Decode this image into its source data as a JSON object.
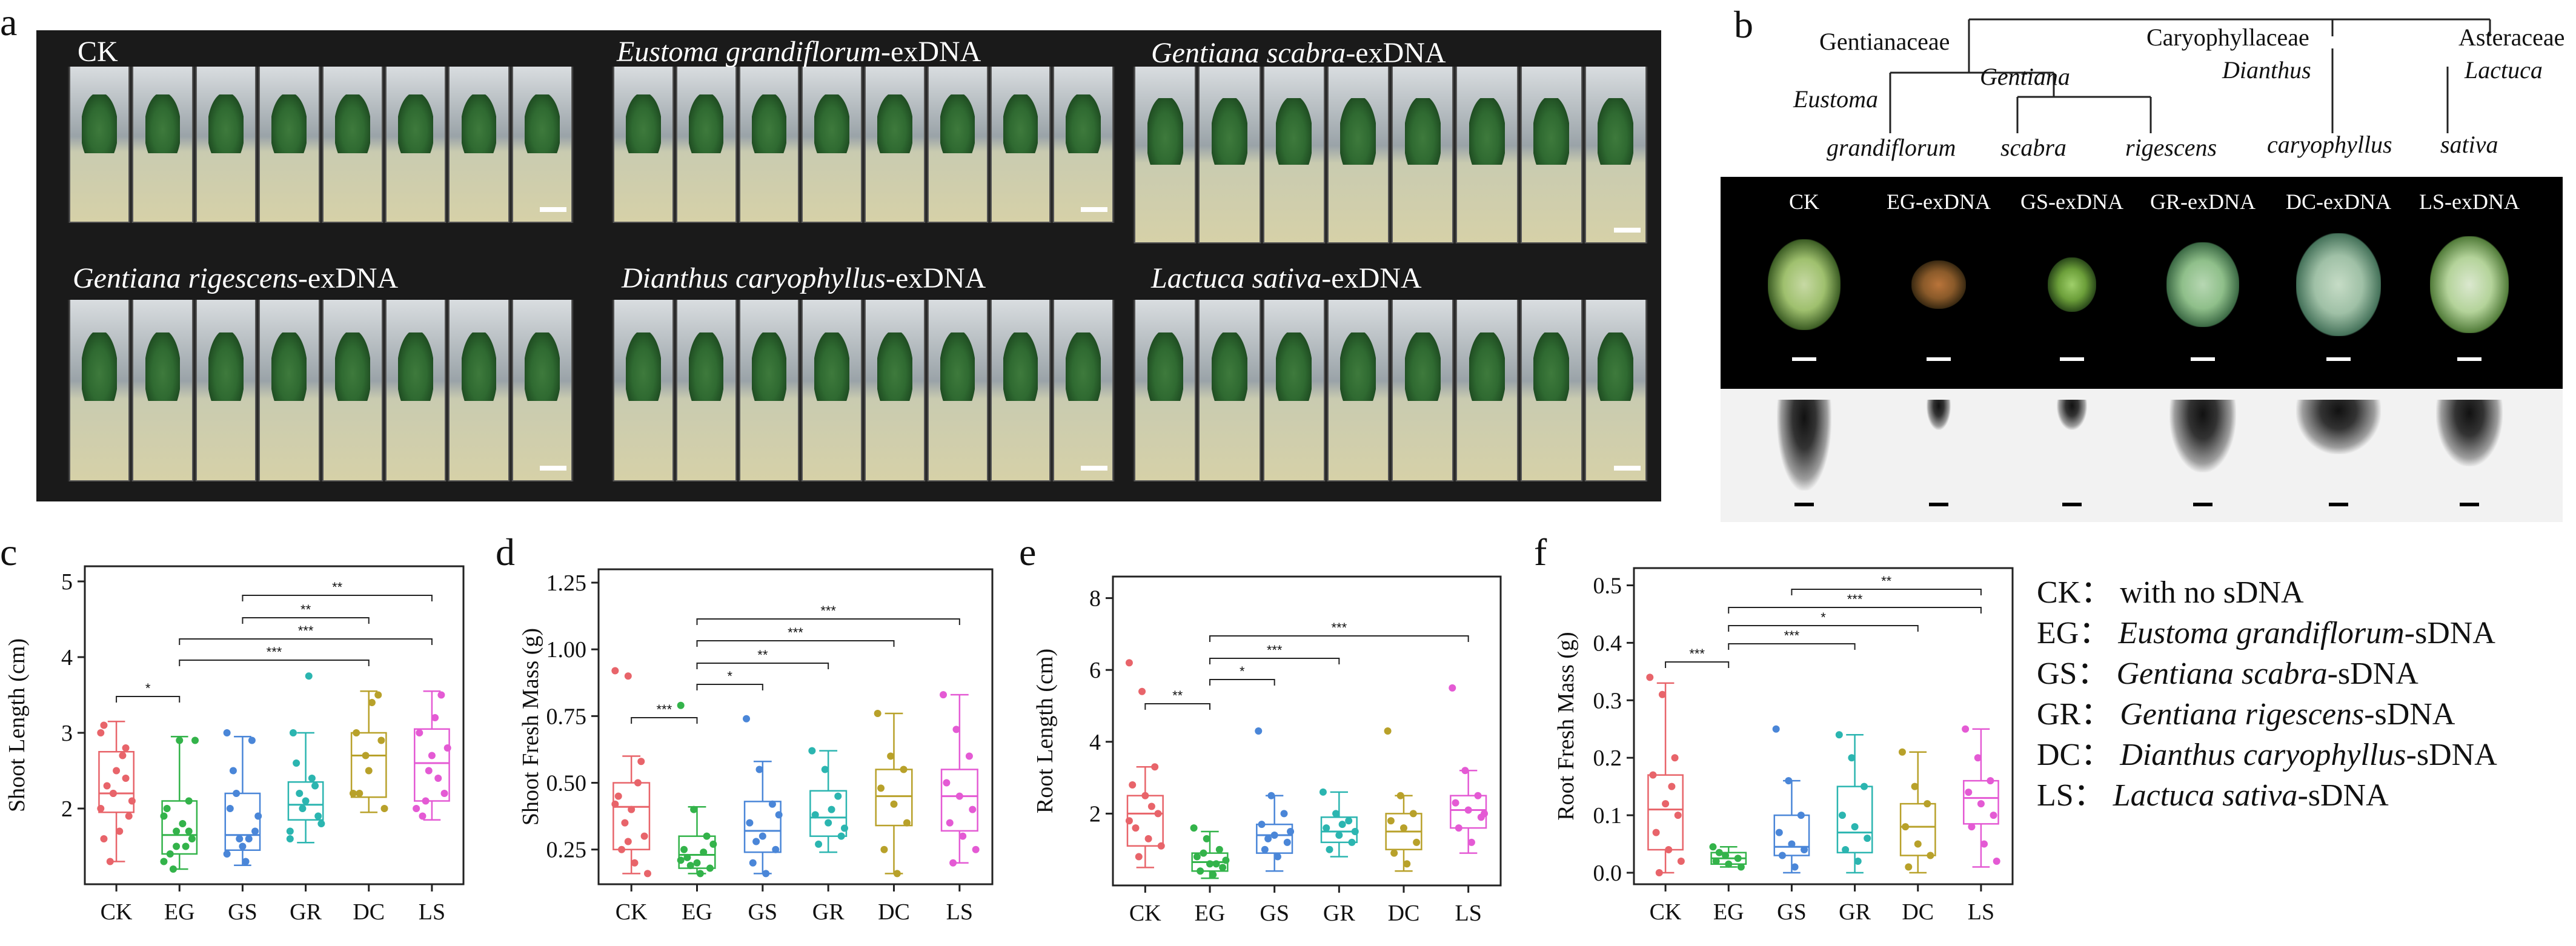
{
  "panel_labels": {
    "a": "a",
    "b": "b",
    "c": "c",
    "d": "d",
    "e": "e",
    "f": "f"
  },
  "panel_a": {
    "tiles": [
      {
        "caption_plain": "CK",
        "caption_italic": "",
        "caption_suffix": ""
      },
      {
        "caption_plain": "",
        "caption_italic": "Eustoma grandiflorum",
        "caption_suffix": "-exDNA"
      },
      {
        "caption_plain": "",
        "caption_italic": "Gentiana scabra",
        "caption_suffix": "-exDNA"
      },
      {
        "caption_plain": "",
        "caption_italic": "Gentiana rigescens",
        "caption_suffix": "-exDNA"
      },
      {
        "caption_plain": "",
        "caption_italic": "Dianthus caryophyllus",
        "caption_suffix": "-exDNA"
      },
      {
        "caption_plain": "",
        "caption_italic": "Lactuca sativa",
        "caption_suffix": "-exDNA"
      }
    ]
  },
  "panel_b": {
    "tree": {
      "families": [
        "Gentianaceae",
        "Caryophyllaceae",
        "Asteraceae"
      ],
      "genera": [
        "Eustoma",
        "Gentiana",
        "Dianthus",
        "Lactuca"
      ],
      "species": [
        "grandiflorum",
        "scabra",
        "rigescens",
        "caryophyllus",
        "sativa"
      ]
    },
    "columns": [
      "CK",
      "EG-exDNA",
      "GS-exDNA",
      "GR-exDNA",
      "DC-exDNA",
      "LS-exDNA"
    ]
  },
  "legend": [
    {
      "code": "CK",
      "sep": "：",
      "text_plain": "with no sDNA",
      "text_italic": "",
      "text_suffix": ""
    },
    {
      "code": "EG",
      "sep": "：",
      "text_plain": "",
      "text_italic": "Eustoma grandiflorum",
      "text_suffix": "-sDNA"
    },
    {
      "code": "GS",
      "sep": "：",
      "text_plain": "",
      "text_italic": "Gentiana scabra",
      "text_suffix": "-sDNA"
    },
    {
      "code": "GR",
      "sep": "：",
      "text_plain": "",
      "text_italic": "Gentiana rigescens",
      "text_suffix": "-sDNA"
    },
    {
      "code": "DC",
      "sep": "：",
      "text_plain": "",
      "text_italic": "Dianthus caryophyllus",
      "text_suffix": "-sDNA"
    },
    {
      "code": "LS",
      "sep": "：",
      "text_plain": "",
      "text_italic": "Lactuca sativa",
      "text_suffix": "-sDNA"
    }
  ],
  "group_colors": {
    "CK": "#e8646a",
    "EG": "#33b34a",
    "GS": "#4a86d8",
    "GR": "#2bb5b0",
    "DC": "#b8a12a",
    "LS": "#e45ad4"
  },
  "chart_data": [
    {
      "type": "box",
      "id": "c",
      "ylabel": "Shoot Length  (cm)",
      "categories": [
        "CK",
        "EG",
        "GS",
        "GR",
        "DC",
        "LS"
      ],
      "ylim": [
        1.0,
        5.2
      ],
      "yticks": [
        2,
        3,
        4,
        5
      ],
      "boxes": [
        {
          "q1": 1.95,
          "median": 2.2,
          "q3": 2.75,
          "whislo": 1.3,
          "whishi": 3.15
        },
        {
          "q1": 1.4,
          "median": 1.65,
          "q3": 2.1,
          "whislo": 1.2,
          "whishi": 2.95
        },
        {
          "q1": 1.45,
          "median": 1.65,
          "q3": 2.2,
          "whislo": 1.25,
          "whishi": 2.95
        },
        {
          "q1": 1.85,
          "median": 2.05,
          "q3": 2.35,
          "whislo": 1.55,
          "whishi": 3.0
        },
        {
          "q1": 2.15,
          "median": 2.7,
          "q3": 3.0,
          "whislo": 1.95,
          "whishi": 3.55
        },
        {
          "q1": 2.1,
          "median": 2.6,
          "q3": 3.05,
          "whislo": 1.85,
          "whishi": 3.55
        }
      ],
      "points": [
        [
          2.0,
          2.2,
          2.8,
          3.1,
          2.5,
          1.9,
          2.3,
          1.7,
          2.1,
          1.3,
          2.7,
          3.0,
          2.2,
          2.4,
          1.6
        ],
        [
          1.3,
          1.5,
          1.7,
          2.0,
          2.9,
          1.6,
          1.4,
          1.8,
          2.9,
          1.2,
          1.5,
          1.9,
          1.7,
          2.1
        ],
        [
          1.4,
          1.6,
          2.9,
          2.0,
          1.5,
          1.7,
          2.5,
          1.3,
          1.9,
          2.2,
          1.6,
          3.0
        ],
        [
          1.7,
          2.0,
          2.3,
          3.0,
          2.1,
          1.9,
          2.6,
          3.75,
          1.8,
          2.2,
          2.4,
          1.6
        ],
        [
          2.2,
          2.7,
          3.5,
          3.0,
          2.5,
          2.9,
          2.2,
          3.4,
          2.0
        ],
        [
          2.0,
          2.5,
          3.5,
          3.0,
          2.7,
          2.2,
          1.9,
          3.2,
          2.8,
          2.1,
          2.4
        ]
      ],
      "significance": [
        {
          "from": "CK",
          "to": "EG",
          "label": "*"
        },
        {
          "from": "EG",
          "to": "DC",
          "label": "***"
        },
        {
          "from": "EG",
          "to": "LS",
          "label": "***"
        },
        {
          "from": "GS",
          "to": "DC",
          "label": "**"
        },
        {
          "from": "GS",
          "to": "LS",
          "label": "**"
        }
      ]
    },
    {
      "type": "box",
      "id": "d",
      "ylabel": "Shoot Fresh Mass  (g)",
      "categories": [
        "CK",
        "EG",
        "GS",
        "GR",
        "DC",
        "LS"
      ],
      "ylim": [
        0.12,
        1.3
      ],
      "yticks": [
        0.25,
        0.5,
        0.75,
        1.0,
        1.25
      ],
      "ytick_labels": [
        "0.25",
        "0.50",
        "0.75",
        "1.00",
        "1.25"
      ],
      "boxes": [
        {
          "q1": 0.25,
          "median": 0.41,
          "q3": 0.5,
          "whislo": 0.16,
          "whishi": 0.6
        },
        {
          "q1": 0.18,
          "median": 0.23,
          "q3": 0.3,
          "whislo": 0.16,
          "whishi": 0.41
        },
        {
          "q1": 0.24,
          "median": 0.32,
          "q3": 0.43,
          "whislo": 0.16,
          "whishi": 0.58
        },
        {
          "q1": 0.3,
          "median": 0.37,
          "q3": 0.47,
          "whislo": 0.24,
          "whishi": 0.62
        },
        {
          "q1": 0.34,
          "median": 0.45,
          "q3": 0.55,
          "whislo": 0.16,
          "whishi": 0.76
        },
        {
          "q1": 0.32,
          "median": 0.45,
          "q3": 0.55,
          "whislo": 0.2,
          "whishi": 0.83
        }
      ],
      "points": [
        [
          0.92,
          0.9,
          0.58,
          0.45,
          0.4,
          0.3,
          0.25,
          0.2,
          0.16,
          0.35,
          0.5,
          0.42,
          0.28
        ],
        [
          0.79,
          0.4,
          0.3,
          0.25,
          0.2,
          0.18,
          0.22,
          0.16,
          0.27,
          0.19,
          0.24,
          0.21
        ],
        [
          0.74,
          0.55,
          0.42,
          0.35,
          0.3,
          0.25,
          0.2,
          0.16,
          0.38,
          0.28
        ],
        [
          0.62,
          0.55,
          0.45,
          0.38,
          0.35,
          0.3,
          0.27,
          0.4,
          0.33
        ],
        [
          0.76,
          0.6,
          0.55,
          0.48,
          0.42,
          0.35,
          0.25,
          0.16
        ],
        [
          0.83,
          0.7,
          0.6,
          0.5,
          0.45,
          0.4,
          0.35,
          0.3,
          0.25,
          0.2
        ]
      ],
      "significance": [
        {
          "from": "CK",
          "to": "EG",
          "label": "***"
        },
        {
          "from": "EG",
          "to": "GS",
          "label": "*"
        },
        {
          "from": "EG",
          "to": "GR",
          "label": "**"
        },
        {
          "from": "EG",
          "to": "DC",
          "label": "***"
        },
        {
          "from": "EG",
          "to": "LS",
          "label": "***"
        }
      ]
    },
    {
      "type": "box",
      "id": "e",
      "ylabel": "Root Length  (cm)",
      "categories": [
        "CK",
        "EG",
        "GS",
        "GR",
        "DC",
        "LS"
      ],
      "ylim": [
        0,
        8.6
      ],
      "yticks": [
        2,
        4,
        6,
        8
      ],
      "boxes": [
        {
          "q1": 1.1,
          "median": 2.0,
          "q3": 2.5,
          "whislo": 0.5,
          "whishi": 3.3
        },
        {
          "q1": 0.4,
          "median": 0.65,
          "q3": 0.9,
          "whislo": 0.2,
          "whishi": 1.5
        },
        {
          "q1": 0.9,
          "median": 1.4,
          "q3": 1.7,
          "whislo": 0.4,
          "whishi": 2.5
        },
        {
          "q1": 1.2,
          "median": 1.5,
          "q3": 1.9,
          "whislo": 0.8,
          "whishi": 2.6
        },
        {
          "q1": 1.0,
          "median": 1.5,
          "q3": 2.0,
          "whislo": 0.4,
          "whishi": 2.5
        },
        {
          "q1": 1.6,
          "median": 2.1,
          "q3": 2.5,
          "whislo": 0.9,
          "whishi": 3.2
        }
      ],
      "points": [
        [
          6.2,
          5.4,
          3.3,
          2.8,
          2.5,
          2.0,
          1.6,
          1.3,
          1.1,
          0.8,
          2.2,
          1.8
        ],
        [
          1.6,
          1.3,
          1.0,
          0.8,
          0.6,
          0.5,
          0.4,
          0.3,
          0.7,
          0.9,
          0.6
        ],
        [
          4.3,
          2.5,
          2.0,
          1.7,
          1.4,
          1.2,
          1.0,
          0.8,
          1.5,
          1.3
        ],
        [
          2.6,
          2.0,
          1.8,
          1.6,
          1.4,
          1.2,
          1.0,
          1.7,
          1.5
        ],
        [
          4.3,
          2.5,
          2.0,
          1.8,
          1.6,
          1.2,
          0.9,
          0.6
        ],
        [
          5.5,
          3.2,
          2.5,
          2.3,
          2.1,
          1.9,
          1.6,
          1.2,
          2.0
        ]
      ],
      "significance": [
        {
          "from": "CK",
          "to": "EG",
          "label": "**"
        },
        {
          "from": "EG",
          "to": "GS",
          "label": "*"
        },
        {
          "from": "EG",
          "to": "GR",
          "label": "***"
        },
        {
          "from": "EG",
          "to": "LS",
          "label": "***"
        }
      ]
    },
    {
      "type": "box",
      "id": "f",
      "ylabel": "Root Fresh Mass  (g)",
      "categories": [
        "CK",
        "EG",
        "GS",
        "GR",
        "DC",
        "LS"
      ],
      "ylim": [
        -0.02,
        0.53
      ],
      "yticks": [
        0.0,
        0.1,
        0.2,
        0.3,
        0.4,
        0.5
      ],
      "ytick_labels": [
        "0.0",
        "0.1",
        "0.2",
        "0.3",
        "0.4",
        "0.5"
      ],
      "boxes": [
        {
          "q1": 0.04,
          "median": 0.11,
          "q3": 0.17,
          "whislo": 0.0,
          "whishi": 0.33
        },
        {
          "q1": 0.015,
          "median": 0.025,
          "q3": 0.035,
          "whislo": 0.01,
          "whishi": 0.045
        },
        {
          "q1": 0.03,
          "median": 0.045,
          "q3": 0.1,
          "whislo": 0.0,
          "whishi": 0.16
        },
        {
          "q1": 0.035,
          "median": 0.07,
          "q3": 0.15,
          "whislo": 0.0,
          "whishi": 0.24
        },
        {
          "q1": 0.03,
          "median": 0.08,
          "q3": 0.12,
          "whislo": 0.0,
          "whishi": 0.21
        },
        {
          "q1": 0.085,
          "median": 0.13,
          "q3": 0.16,
          "whislo": 0.01,
          "whishi": 0.25
        }
      ],
      "points": [
        [
          0.34,
          0.31,
          0.2,
          0.17,
          0.12,
          0.1,
          0.07,
          0.04,
          0.02,
          0.0,
          0.15
        ],
        [
          0.045,
          0.03,
          0.025,
          0.02,
          0.015,
          0.01,
          0.035
        ],
        [
          0.25,
          0.16,
          0.1,
          0.07,
          0.05,
          0.04,
          0.03,
          0.01
        ],
        [
          0.24,
          0.2,
          0.15,
          0.1,
          0.08,
          0.06,
          0.04,
          0.02
        ],
        [
          0.21,
          0.15,
          0.12,
          0.08,
          0.05,
          0.03,
          0.01
        ],
        [
          0.25,
          0.2,
          0.16,
          0.14,
          0.12,
          0.1,
          0.08,
          0.05,
          0.02
        ]
      ],
      "significance": [
        {
          "from": "CK",
          "to": "EG",
          "label": "***"
        },
        {
          "from": "EG",
          "to": "GR",
          "label": "***"
        },
        {
          "from": "EG",
          "to": "DC",
          "label": "*"
        },
        {
          "from": "EG",
          "to": "LS",
          "label": "***"
        },
        {
          "from": "GS",
          "to": "LS",
          "label": "**"
        }
      ]
    }
  ]
}
